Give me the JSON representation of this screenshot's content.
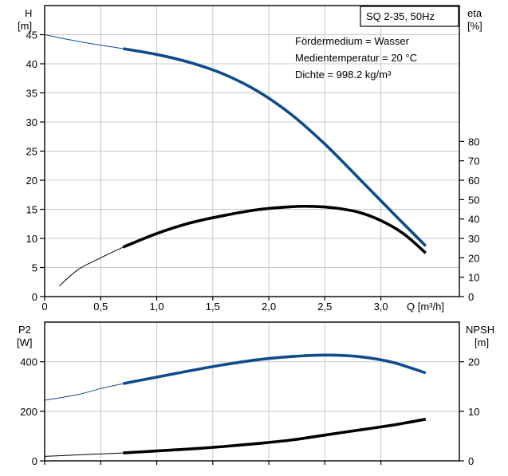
{
  "colors": {
    "blue": "#0f4c8a",
    "black": "#000000",
    "grid": "#c8c8c8"
  },
  "chart_data": [
    {
      "type": "line",
      "title": "SQ 2-35, 50Hz",
      "annotations": [
        "Fördermedium = Wasser",
        "Medientemperatur = 20 °C",
        "Dichte = 998.2 kg/m³"
      ],
      "y_left_label": [
        "H",
        "[m]"
      ],
      "y_right_label": [
        "eta",
        "[%]"
      ],
      "x_label": "Q [m³/h]",
      "x_ticks": [
        "0",
        "0,5",
        "1,0",
        "1,5",
        "2,0",
        "2,5",
        "3,0"
      ],
      "y_left_ticks": [
        "0",
        "5",
        "10",
        "15",
        "20",
        "25",
        "30",
        "35",
        "40",
        "45"
      ],
      "y_right_ticks": [
        "0",
        "10",
        "20",
        "30",
        "40",
        "50",
        "60",
        "70",
        "80"
      ],
      "xlim": [
        0,
        3.7
      ],
      "ylim_left": [
        0,
        50
      ],
      "ylim_right": [
        0,
        150
      ],
      "grid": true,
      "series": [
        {
          "axis": "left",
          "color": "blue",
          "solid_from": 0.7,
          "x": [
            0,
            0.2,
            0.4,
            0.6,
            0.7,
            1.0,
            1.3,
            1.6,
            1.9,
            2.2,
            2.5,
            2.8,
            3.1,
            3.4
          ],
          "y": [
            45,
            44.2,
            43.5,
            42.9,
            42.6,
            41.6,
            40.2,
            38.2,
            35.3,
            31.3,
            26.2,
            20.4,
            14.5,
            8.7
          ]
        },
        {
          "axis": "right",
          "color": "black",
          "solid_from": 0.7,
          "x": [
            0.13,
            0.3,
            0.5,
            0.7,
            1.0,
            1.3,
            1.6,
            1.9,
            2.2,
            2.4,
            2.6,
            2.8,
            3.0,
            3.2,
            3.4
          ],
          "y": [
            5.5,
            14,
            20,
            25.5,
            32.5,
            38,
            41.8,
            44.8,
            46.3,
            46.5,
            45.6,
            43.5,
            39.2,
            32.5,
            22.5
          ]
        }
      ]
    },
    {
      "type": "line",
      "y_left_label": [
        "P2",
        "[W]"
      ],
      "y_right_label": [
        "NPSH",
        "[m]"
      ],
      "y_left_ticks": [
        "0",
        "200",
        "400"
      ],
      "y_right_ticks": [
        "0",
        "10",
        "20"
      ],
      "xlim": [
        0,
        3.7
      ],
      "ylim_left": [
        0,
        560
      ],
      "ylim_right": [
        0,
        28
      ],
      "grid": true,
      "series": [
        {
          "axis": "left",
          "color": "blue",
          "solid_from": 0.7,
          "x": [
            0,
            0.3,
            0.5,
            0.7,
            1.0,
            1.3,
            1.6,
            1.9,
            2.2,
            2.5,
            2.8,
            3.1,
            3.4
          ],
          "y": [
            245,
            268,
            292,
            312,
            338,
            364,
            388,
            408,
            421,
            427,
            421,
            398,
            355
          ]
        },
        {
          "axis": "right",
          "color": "black",
          "solid_from": 0.7,
          "x": [
            0,
            0.3,
            0.5,
            0.7,
            1.0,
            1.3,
            1.6,
            1.9,
            2.2,
            2.5,
            2.8,
            3.1,
            3.4
          ],
          "y": [
            0.9,
            1.2,
            1.4,
            1.6,
            2.0,
            2.4,
            2.9,
            3.5,
            4.2,
            5.2,
            6.2,
            7.2,
            8.4
          ]
        }
      ]
    }
  ]
}
